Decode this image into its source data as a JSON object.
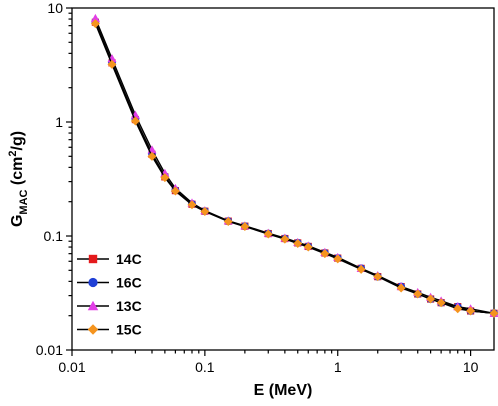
{
  "chart_data": {
    "type": "line",
    "xlabel": "E (MeV)",
    "ylabel": {
      "main": "G",
      "sub": "MAC",
      "unit_open": " (cm",
      "unit_sup": "2",
      "unit_close": "/g)"
    },
    "xscale": "log",
    "yscale": "log",
    "xlim": [
      0.01,
      15
    ],
    "ylim": [
      0.01,
      10
    ],
    "grid": false,
    "legend_position": "lower-left",
    "x_ticks": [
      {
        "value": 0.01,
        "label": "0.01"
      },
      {
        "value": 0.1,
        "label": "0.1"
      },
      {
        "value": 1,
        "label": "1"
      },
      {
        "value": 10,
        "label": "10"
      }
    ],
    "y_ticks": [
      {
        "value": 0.01,
        "label": "0.01"
      },
      {
        "value": 0.1,
        "label": "0.1"
      },
      {
        "value": 1,
        "label": "1"
      },
      {
        "value": 10,
        "label": "10"
      }
    ],
    "x": [
      0.015,
      0.02,
      0.03,
      0.04,
      0.05,
      0.06,
      0.08,
      0.1,
      0.15,
      0.2,
      0.3,
      0.4,
      0.5,
      0.6,
      0.8,
      1,
      1.5,
      2,
      3,
      4,
      5,
      6,
      8,
      10,
      15
    ],
    "series": [
      {
        "name": "14C",
        "color": "#e41a1c",
        "marker": "square",
        "values": [
          7.5,
          3.3,
          1.05,
          0.52,
          0.33,
          0.25,
          0.19,
          0.165,
          0.135,
          0.122,
          0.105,
          0.095,
          0.087,
          0.081,
          0.071,
          0.064,
          0.052,
          0.044,
          0.036,
          0.031,
          0.028,
          0.026,
          0.024,
          0.022,
          0.021
        ]
      },
      {
        "name": "16C",
        "color": "#1f3fd6",
        "marker": "circle",
        "values": [
          7.6,
          3.35,
          1.07,
          0.53,
          0.335,
          0.252,
          0.191,
          0.165,
          0.135,
          0.122,
          0.105,
          0.095,
          0.087,
          0.081,
          0.071,
          0.064,
          0.052,
          0.044,
          0.036,
          0.031,
          0.028,
          0.026,
          0.024,
          0.022,
          0.021
        ]
      },
      {
        "name": "13C",
        "color": "#e23ee6",
        "marker": "triangle",
        "values": [
          8.1,
          3.6,
          1.15,
          0.57,
          0.355,
          0.262,
          0.195,
          0.167,
          0.136,
          0.123,
          0.106,
          0.096,
          0.088,
          0.082,
          0.072,
          0.065,
          0.052,
          0.045,
          0.036,
          0.032,
          0.029,
          0.027,
          0.024,
          0.023,
          0.021
        ]
      },
      {
        "name": "15C",
        "color": "#f5941e",
        "marker": "diamond",
        "values": [
          7.3,
          3.2,
          1.02,
          0.5,
          0.325,
          0.248,
          0.188,
          0.164,
          0.134,
          0.121,
          0.104,
          0.094,
          0.086,
          0.08,
          0.07,
          0.063,
          0.051,
          0.044,
          0.035,
          0.031,
          0.028,
          0.026,
          0.023,
          0.022,
          0.021
        ]
      }
    ]
  }
}
